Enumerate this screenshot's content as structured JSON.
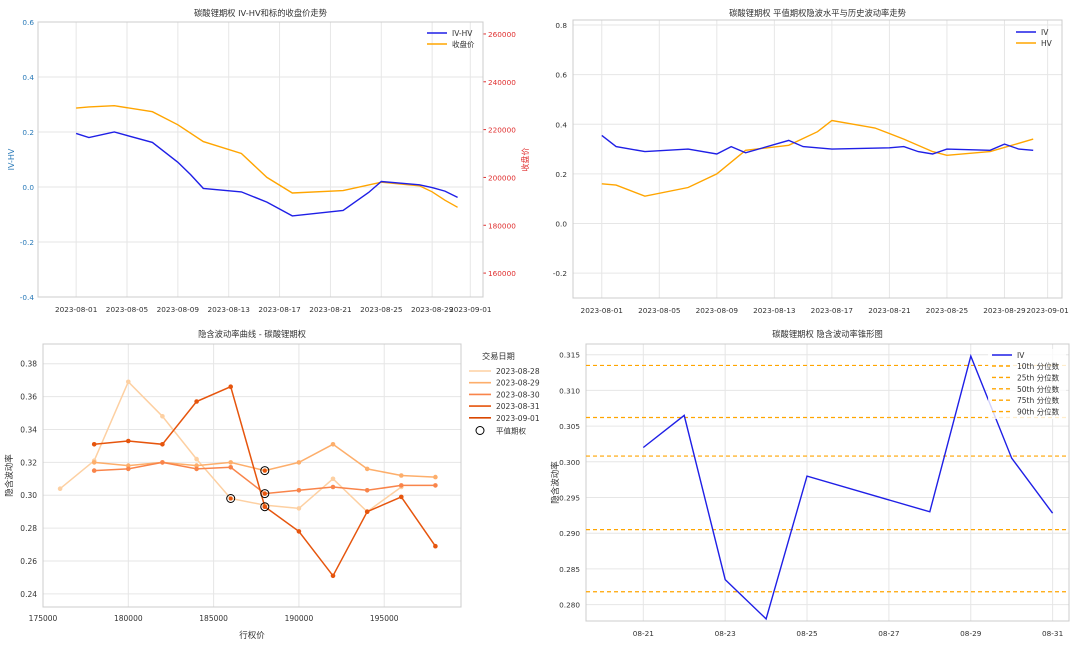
{
  "colors": {
    "blue": "#1f1fe6",
    "orange": "#ffa500",
    "red_axis": "#e03030",
    "blue_axis": "#2a7ab8",
    "grid": "#e6e6e6",
    "frame": "#cccccc",
    "iv_curve_dates": [
      "#fdd0a2",
      "#fdae6b",
      "#f9844a",
      "#e6550d",
      "#d94801"
    ]
  },
  "chart_data": [
    {
      "type": "line",
      "title": "碳酸锂期权 IV-HV和标的收盘价走势",
      "ylabel": "IV-HV",
      "y2label": "收盘价",
      "x_ticks": [
        "2023-08-01",
        "2023-08-05",
        "2023-08-09",
        "2023-08-13",
        "2023-08-17",
        "2023-08-21",
        "2023-08-25",
        "2023-08-29",
        "2023-09-01"
      ],
      "ylim": [
        -0.4,
        0.6
      ],
      "y_ticks": [
        "-0.4",
        "-0.2",
        "0.0",
        "0.2",
        "0.4",
        "0.6"
      ],
      "y2lim": [
        150000,
        265000
      ],
      "y2_ticks": [
        "160000",
        "180000",
        "200000",
        "220000",
        "240000",
        "260000"
      ],
      "grid": true,
      "legend": "top-right",
      "series": [
        {
          "name": "IV-HV",
          "axis": "left",
          "color": "blue",
          "x": [
            "2023-08-01",
            "2023-08-02",
            "2023-08-04",
            "2023-08-07",
            "2023-08-09",
            "2023-08-10",
            "2023-08-11",
            "2023-08-14",
            "2023-08-16",
            "2023-08-18",
            "2023-08-22",
            "2023-08-24",
            "2023-08-25",
            "2023-08-28",
            "2023-08-29",
            "2023-08-30",
            "2023-08-31"
          ],
          "y": [
            0.195,
            0.18,
            0.2,
            0.162,
            0.09,
            0.045,
            -0.005,
            -0.018,
            -0.055,
            -0.105,
            -0.085,
            -0.02,
            0.02,
            0.008,
            -0.002,
            -0.015,
            -0.038
          ]
        },
        {
          "name": "收盘价",
          "axis": "right",
          "color": "orange",
          "x": [
            "2023-08-01",
            "2023-08-02",
            "2023-08-04",
            "2023-08-07",
            "2023-08-09",
            "2023-08-11",
            "2023-08-14",
            "2023-08-16",
            "2023-08-18",
            "2023-08-22",
            "2023-08-25",
            "2023-08-28",
            "2023-08-29",
            "2023-08-30",
            "2023-08-31"
          ],
          "y": [
            229000,
            229500,
            230000,
            227500,
            222000,
            215000,
            210000,
            200000,
            193500,
            194500,
            198000,
            196500,
            194000,
            190500,
            187500
          ]
        }
      ]
    },
    {
      "type": "line",
      "title": "碳酸锂期权 平值期权隐波水平与历史波动率走势",
      "x_ticks": [
        "2023-08-01",
        "2023-08-05",
        "2023-08-09",
        "2023-08-13",
        "2023-08-17",
        "2023-08-21",
        "2023-08-25",
        "2023-08-29",
        "2023-09-01"
      ],
      "ylim": [
        -0.3,
        0.82
      ],
      "y_ticks": [
        "-0.2",
        "0.0",
        "0.2",
        "0.4",
        "0.6",
        "0.8"
      ],
      "grid": true,
      "legend": "top-right",
      "series": [
        {
          "name": "IV",
          "color": "blue",
          "x": [
            "2023-08-01",
            "2023-08-02",
            "2023-08-04",
            "2023-08-07",
            "2023-08-09",
            "2023-08-10",
            "2023-08-11",
            "2023-08-14",
            "2023-08-15",
            "2023-08-16",
            "2023-08-17",
            "2023-08-21",
            "2023-08-22",
            "2023-08-23",
            "2023-08-24",
            "2023-08-25",
            "2023-08-28",
            "2023-08-29",
            "2023-08-30",
            "2023-08-31"
          ],
          "y": [
            0.355,
            0.31,
            0.29,
            0.3,
            0.28,
            0.31,
            0.285,
            0.335,
            0.31,
            0.305,
            0.3,
            0.305,
            0.31,
            0.29,
            0.28,
            0.3,
            0.295,
            0.32,
            0.3,
            0.295
          ]
        },
        {
          "name": "HV",
          "color": "orange",
          "x": [
            "2023-08-01",
            "2023-08-02",
            "2023-08-04",
            "2023-08-07",
            "2023-08-09",
            "2023-08-11",
            "2023-08-14",
            "2023-08-16",
            "2023-08-17",
            "2023-08-20",
            "2023-08-22",
            "2023-08-24",
            "2023-08-25",
            "2023-08-28",
            "2023-08-31"
          ],
          "y": [
            0.16,
            0.155,
            0.11,
            0.145,
            0.2,
            0.295,
            0.315,
            0.37,
            0.415,
            0.385,
            0.34,
            0.29,
            0.275,
            0.29,
            0.34
          ]
        }
      ]
    },
    {
      "type": "line",
      "title": "隐含波动率曲线 - 碳酸锂期权",
      "xlabel": "行权价",
      "ylabel": "隐含波动率",
      "xlim": [
        175000,
        199500
      ],
      "x_ticks": [
        175000,
        180000,
        185000,
        190000,
        195000
      ],
      "ylim": [
        0.232,
        0.392
      ],
      "y_ticks": [
        "0.24",
        "0.26",
        "0.28",
        "0.30",
        "0.32",
        "0.34",
        "0.36",
        "0.38"
      ],
      "grid": true,
      "legend": "top-right",
      "legend_title": "交易日期",
      "atm_label": "平值期权",
      "series": [
        {
          "name": "2023-08-28",
          "x": [
            176000,
            178000,
            180000,
            182000,
            184000,
            186000,
            188000,
            190000,
            192000,
            194000,
            196000
          ],
          "y": [
            0.304,
            0.321,
            0.369,
            0.348,
            0.322,
            0.298,
            0.294,
            0.292,
            0.31,
            0.29,
            0.305
          ]
        },
        {
          "name": "2023-08-29",
          "x": [
            178000,
            180000,
            182000,
            184000,
            186000,
            188000,
            190000,
            192000,
            194000,
            196000,
            198000
          ],
          "y": [
            0.32,
            0.318,
            0.32,
            0.318,
            0.32,
            0.315,
            0.32,
            0.331,
            0.316,
            0.312,
            0.311
          ]
        },
        {
          "name": "2023-08-30",
          "x": [
            178000,
            180000,
            182000,
            184000,
            186000,
            188000,
            190000,
            192000,
            194000,
            196000,
            198000
          ],
          "y": [
            0.315,
            0.316,
            0.32,
            0.316,
            0.317,
            0.301,
            0.303,
            0.305,
            0.303,
            0.306,
            0.306
          ]
        },
        {
          "name": "2023-08-31",
          "x": [
            178000,
            180000,
            182000,
            184000,
            186000,
            188000,
            190000,
            192000,
            194000,
            196000,
            198000
          ],
          "y": [
            0.331,
            0.333,
            0.331,
            0.357,
            0.366,
            0.293,
            0.278,
            0.251,
            0.29,
            0.299,
            0.269
          ]
        },
        {
          "name": "2023-09-01",
          "x": [],
          "y": []
        }
      ],
      "atm_points": [
        {
          "x": 186000,
          "y": 0.298
        },
        {
          "x": 188000,
          "y": 0.315
        },
        {
          "x": 188000,
          "y": 0.301
        },
        {
          "x": 188000,
          "y": 0.293
        }
      ]
    },
    {
      "type": "line",
      "title": "碳酸锂期权 隐含波动率锥形图",
      "ylabel": "隐含波动率",
      "x_ticks": [
        "08-21",
        "08-23",
        "08-25",
        "08-27",
        "08-29",
        "08-31"
      ],
      "x": [
        "08-21",
        "08-22",
        "08-23",
        "08-24",
        "08-25",
        "08-28",
        "08-29",
        "08-30",
        "08-31"
      ],
      "ylim": [
        0.2777,
        0.3165
      ],
      "y_ticks": [
        "0.280",
        "0.285",
        "0.290",
        "0.295",
        "0.300",
        "0.305",
        "0.310",
        "0.315"
      ],
      "grid": true,
      "legend": "top-right",
      "series": [
        {
          "name": "IV",
          "color": "blue",
          "y": [
            0.302,
            0.3065,
            0.2835,
            0.278,
            0.298,
            0.293,
            0.3148,
            0.3005,
            0.2928
          ]
        }
      ],
      "percentiles": [
        {
          "name": "10th 分位数",
          "value": 0.2818
        },
        {
          "name": "25th 分位数",
          "value": 0.2905
        },
        {
          "name": "50th 分位数",
          "value": 0.3008
        },
        {
          "name": "75th 分位数",
          "value": 0.3062
        },
        {
          "name": "90th 分位数",
          "value": 0.3135
        }
      ]
    }
  ]
}
